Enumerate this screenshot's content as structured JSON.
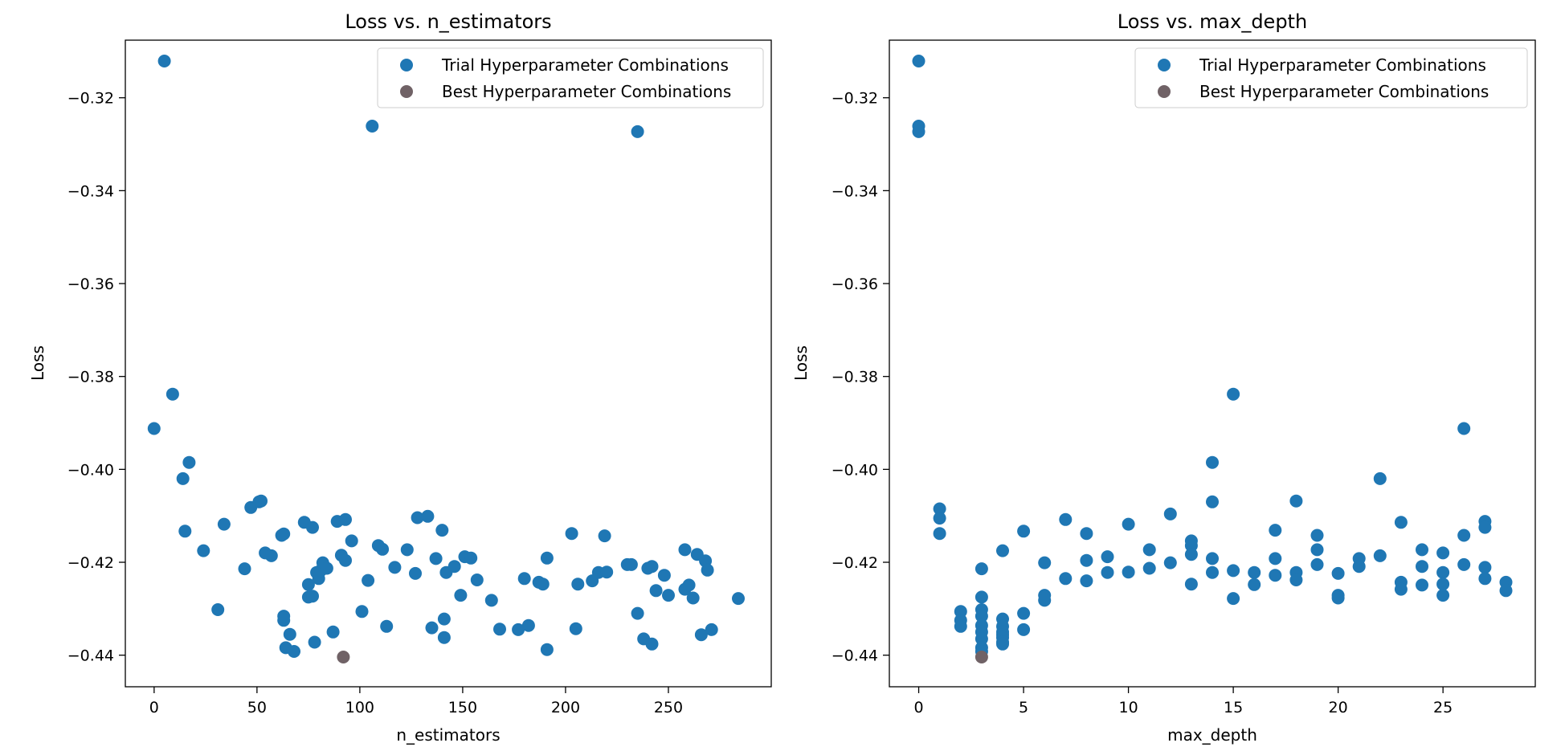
{
  "colors": {
    "trial": "#1f77b4",
    "best": "#706266",
    "axis": "#000000",
    "legend_border": "#cccccc"
  },
  "chart_data": [
    {
      "type": "scatter",
      "title": "Loss vs. n_estimators",
      "xlabel": "n_estimators",
      "ylabel": "Loss",
      "xlim": [
        -14,
        300
      ],
      "ylim": [
        -0.4468,
        -0.3076
      ],
      "xticks": [
        0,
        50,
        100,
        150,
        200,
        250
      ],
      "xtick_labels": [
        "0",
        "50",
        "100",
        "150",
        "200",
        "250"
      ],
      "yticks": [
        -0.44,
        -0.42,
        -0.4,
        -0.38,
        -0.36,
        -0.34,
        -0.32
      ],
      "ytick_labels": [
        "−0.44",
        "−0.42",
        "−0.40",
        "−0.38",
        "−0.36",
        "−0.34",
        "−0.32"
      ],
      "legend": {
        "position": "upper right",
        "entries": [
          "Trial Hyperparameter Combinations",
          "Best Hyperparameter Combinations"
        ]
      },
      "grid": false,
      "series": [
        {
          "name": "Trial Hyperparameter Combinations",
          "points": [
            [
              0,
              -0.3912
            ],
            [
              5,
              -0.3121
            ],
            [
              9,
              -0.3838
            ],
            [
              14,
              -0.402
            ],
            [
              15,
              -0.4133
            ],
            [
              17,
              -0.3985
            ],
            [
              24,
              -0.4175
            ],
            [
              31,
              -0.4302
            ],
            [
              34,
              -0.4118
            ],
            [
              44,
              -0.4214
            ],
            [
              47,
              -0.4082
            ],
            [
              51,
              -0.407
            ],
            [
              52,
              -0.4068
            ],
            [
              54,
              -0.418
            ],
            [
              57,
              -0.4186
            ],
            [
              62,
              -0.4142
            ],
            [
              63,
              -0.4139
            ],
            [
              63,
              -0.4325
            ],
            [
              63,
              -0.4316
            ],
            [
              64,
              -0.4384
            ],
            [
              66,
              -0.4355
            ],
            [
              68,
              -0.4392
            ],
            [
              73,
              -0.4114
            ],
            [
              75,
              -0.4275
            ],
            [
              75,
              -0.4248
            ],
            [
              77,
              -0.4125
            ],
            [
              77,
              -0.4273
            ],
            [
              78,
              -0.4372
            ],
            [
              79,
              -0.4222
            ],
            [
              80,
              -0.4235
            ],
            [
              81,
              -0.4218
            ],
            [
              82,
              -0.4201
            ],
            [
              84,
              -0.4213
            ],
            [
              87,
              -0.435
            ],
            [
              89,
              -0.4112
            ],
            [
              91,
              -0.4185
            ],
            [
              93,
              -0.4108
            ],
            [
              93,
              -0.4196
            ],
            [
              96,
              -0.4154
            ],
            [
              101,
              -0.4306
            ],
            [
              104,
              -0.4239
            ],
            [
              106,
              -0.3261
            ],
            [
              109,
              -0.4164
            ],
            [
              111,
              -0.4172
            ],
            [
              113,
              -0.4338
            ],
            [
              117,
              -0.4211
            ],
            [
              123,
              -0.4173
            ],
            [
              127,
              -0.4224
            ],
            [
              128,
              -0.4104
            ],
            [
              133,
              -0.4101
            ],
            [
              135,
              -0.4341
            ],
            [
              137,
              -0.4192
            ],
            [
              140,
              -0.4131
            ],
            [
              141,
              -0.4362
            ],
            [
              141,
              -0.4322
            ],
            [
              142,
              -0.4222
            ],
            [
              146,
              -0.4209
            ],
            [
              149,
              -0.4271
            ],
            [
              151,
              -0.4188
            ],
            [
              154,
              -0.4191
            ],
            [
              157,
              -0.4238
            ],
            [
              164,
              -0.4282
            ],
            [
              168,
              -0.4344
            ],
            [
              177,
              -0.4345
            ],
            [
              180,
              -0.4235
            ],
            [
              182,
              -0.4336
            ],
            [
              187,
              -0.4243
            ],
            [
              189,
              -0.4247
            ],
            [
              191,
              -0.4191
            ],
            [
              191,
              -0.4388
            ],
            [
              203,
              -0.4138
            ],
            [
              205,
              -0.4343
            ],
            [
              206,
              -0.4247
            ],
            [
              213,
              -0.424
            ],
            [
              216,
              -0.4222
            ],
            [
              219,
              -0.4143
            ],
            [
              220,
              -0.4221
            ],
            [
              230,
              -0.4205
            ],
            [
              232,
              -0.4205
            ],
            [
              235,
              -0.3273
            ],
            [
              235,
              -0.431
            ],
            [
              238,
              -0.4365
            ],
            [
              240,
              -0.4213
            ],
            [
              242,
              -0.4209
            ],
            [
              242,
              -0.4376
            ],
            [
              244,
              -0.4261
            ],
            [
              248,
              -0.4228
            ],
            [
              250,
              -0.4271
            ],
            [
              258,
              -0.4173
            ],
            [
              258,
              -0.4258
            ],
            [
              260,
              -0.4249
            ],
            [
              262,
              -0.4277
            ],
            [
              264,
              -0.4183
            ],
            [
              266,
              -0.4356
            ],
            [
              268,
              -0.4197
            ],
            [
              269,
              -0.4217
            ],
            [
              271,
              -0.4345
            ],
            [
              284,
              -0.4278
            ]
          ]
        },
        {
          "name": "Best Hyperparameter Combinations",
          "points": [
            [
              92,
              -0.4404
            ]
          ]
        }
      ]
    },
    {
      "type": "scatter",
      "title": "Loss vs. max_depth",
      "xlabel": "max_depth",
      "ylabel": "Loss",
      "xlim": [
        -1.4,
        29.4
      ],
      "ylim": [
        -0.4468,
        -0.3076
      ],
      "xticks": [
        0,
        5,
        10,
        15,
        20,
        25
      ],
      "xtick_labels": [
        "0",
        "5",
        "10",
        "15",
        "20",
        "25"
      ],
      "yticks": [
        -0.44,
        -0.42,
        -0.4,
        -0.38,
        -0.36,
        -0.34,
        -0.32
      ],
      "ytick_labels": [
        "−0.44",
        "−0.42",
        "−0.40",
        "−0.38",
        "−0.36",
        "−0.34",
        "−0.32"
      ],
      "legend": {
        "position": "upper right",
        "entries": [
          "Trial Hyperparameter Combinations",
          "Best Hyperparameter Combinations"
        ]
      },
      "grid": false,
      "series": [
        {
          "name": "Trial Hyperparameter Combinations",
          "points": [
            [
              0,
              -0.3121
            ],
            [
              0,
              -0.3261
            ],
            [
              0,
              -0.3273
            ],
            [
              1,
              -0.4085
            ],
            [
              1,
              -0.4105
            ],
            [
              1,
              -0.4138
            ],
            [
              2,
              -0.4306
            ],
            [
              2,
              -0.4325
            ],
            [
              2,
              -0.4338
            ],
            [
              3,
              -0.4214
            ],
            [
              3,
              -0.4275
            ],
            [
              3,
              -0.4302
            ],
            [
              3,
              -0.4316
            ],
            [
              3,
              -0.4336
            ],
            [
              3,
              -0.435
            ],
            [
              3,
              -0.4365
            ],
            [
              3,
              -0.4384
            ],
            [
              3,
              -0.4392
            ],
            [
              4,
              -0.4175
            ],
            [
              4,
              -0.4322
            ],
            [
              4,
              -0.4338
            ],
            [
              4,
              -0.435
            ],
            [
              4,
              -0.4356
            ],
            [
              4,
              -0.4362
            ],
            [
              4,
              -0.4372
            ],
            [
              4,
              -0.4376
            ],
            [
              5,
              -0.4133
            ],
            [
              5,
              -0.431
            ],
            [
              5,
              -0.4345
            ],
            [
              6,
              -0.4201
            ],
            [
              6,
              -0.4271
            ],
            [
              6,
              -0.4282
            ],
            [
              7,
              -0.4108
            ],
            [
              7,
              -0.4235
            ],
            [
              8,
              -0.4138
            ],
            [
              8,
              -0.4196
            ],
            [
              8,
              -0.424
            ],
            [
              9,
              -0.4188
            ],
            [
              9,
              -0.4222
            ],
            [
              10,
              -0.4118
            ],
            [
              10,
              -0.4221
            ],
            [
              11,
              -0.4173
            ],
            [
              11,
              -0.4213
            ],
            [
              12,
              -0.4096
            ],
            [
              12,
              -0.4201
            ],
            [
              13,
              -0.4154
            ],
            [
              13,
              -0.4164
            ],
            [
              13,
              -0.4183
            ],
            [
              13,
              -0.4247
            ],
            [
              14,
              -0.3985
            ],
            [
              14,
              -0.407
            ],
            [
              14,
              -0.4192
            ],
            [
              14,
              -0.4222
            ],
            [
              15,
              -0.3838
            ],
            [
              15,
              -0.4218
            ],
            [
              15,
              -0.4278
            ],
            [
              16,
              -0.4222
            ],
            [
              16,
              -0.4248
            ],
            [
              17,
              -0.4131
            ],
            [
              17,
              -0.4192
            ],
            [
              17,
              -0.4228
            ],
            [
              18,
              -0.4068
            ],
            [
              18,
              -0.4222
            ],
            [
              18,
              -0.4238
            ],
            [
              19,
              -0.4142
            ],
            [
              19,
              -0.4173
            ],
            [
              19,
              -0.4205
            ],
            [
              20,
              -0.4224
            ],
            [
              20,
              -0.4271
            ],
            [
              20,
              -0.4277
            ],
            [
              21,
              -0.4192
            ],
            [
              21,
              -0.4209
            ],
            [
              22,
              -0.402
            ],
            [
              22,
              -0.4186
            ],
            [
              23,
              -0.4114
            ],
            [
              23,
              -0.4243
            ],
            [
              23,
              -0.4258
            ],
            [
              24,
              -0.4173
            ],
            [
              24,
              -0.4209
            ],
            [
              24,
              -0.4249
            ],
            [
              25,
              -0.418
            ],
            [
              25,
              -0.4222
            ],
            [
              25,
              -0.4247
            ],
            [
              25,
              -0.4271
            ],
            [
              26,
              -0.3912
            ],
            [
              26,
              -0.4142
            ],
            [
              26,
              -0.4205
            ],
            [
              27,
              -0.4112
            ],
            [
              27,
              -0.4125
            ],
            [
              27,
              -0.4211
            ],
            [
              27,
              -0.4235
            ],
            [
              28,
              -0.4243
            ],
            [
              28,
              -0.4261
            ]
          ]
        },
        {
          "name": "Best Hyperparameter Combinations",
          "points": [
            [
              3,
              -0.4404
            ]
          ]
        }
      ]
    }
  ]
}
